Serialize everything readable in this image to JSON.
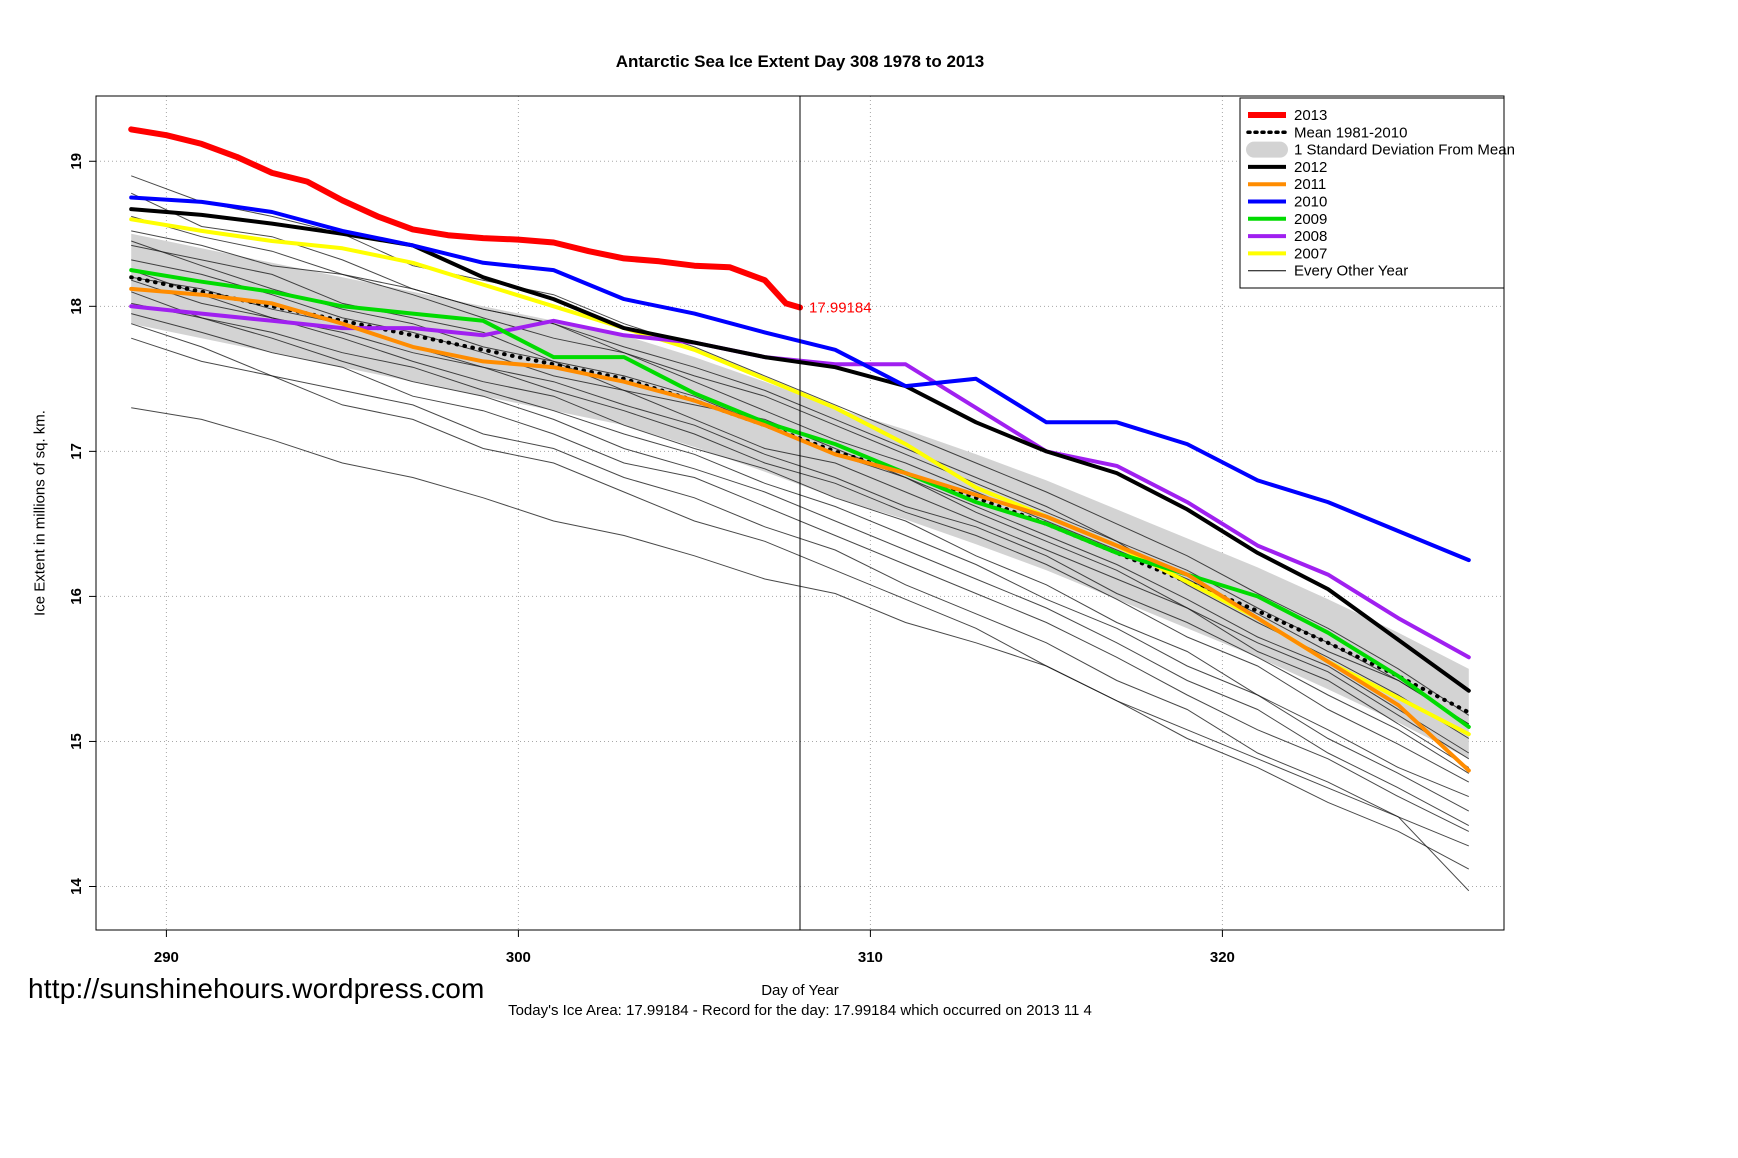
{
  "title": "Antarctic Sea Ice Extent Day 308 1978 to 2013",
  "footer": {
    "url": "http://sunshinehours.wordpress.com",
    "caption": "Today's Ice Area: 17.99184  - Record for the day: 17.99184 which occurred on 2013 11 4"
  },
  "legend": {
    "position": "top-right",
    "items": [
      {
        "label": "2013",
        "color": "#FF0000",
        "style": "thick"
      },
      {
        "label": "Mean 1981-2010",
        "color": "#000000",
        "style": "dashed"
      },
      {
        "label": "1 Standard Deviation From Mean",
        "color": "#D3D3D3",
        "style": "band"
      },
      {
        "label": "2012",
        "color": "#000000",
        "style": "medium"
      },
      {
        "label": "2011",
        "color": "#FF8C00",
        "style": "medium"
      },
      {
        "label": "2010",
        "color": "#0000FF",
        "style": "medium"
      },
      {
        "label": "2009",
        "color": "#00DB00",
        "style": "medium"
      },
      {
        "label": "2008",
        "color": "#A020F0",
        "style": "medium"
      },
      {
        "label": "2007",
        "color": "#FFFF00",
        "style": "medium"
      },
      {
        "label": "Every Other Year",
        "color": "#000000",
        "style": "thin"
      }
    ]
  },
  "chart_data": {
    "type": "line",
    "title": "Antarctic Sea Ice Extent Day 308 1978 to 2013",
    "xlabel": "Day of Year",
    "ylabel": "Ice Extent in millions of sq. km.",
    "xlim": [
      288.0,
      328.0
    ],
    "ylim": [
      13.7,
      19.45
    ],
    "xticks": [
      290,
      300,
      310,
      320
    ],
    "yticks": [
      14,
      15,
      16,
      17,
      18,
      19
    ],
    "grid": true,
    "legend_position": "top-right",
    "vline_x": 308,
    "annotation": {
      "x": 308,
      "y": 17.99184,
      "text": "17.99184",
      "color": "#FF0000"
    },
    "x_days": [
      289,
      291,
      293,
      295,
      297,
      299,
      301,
      303,
      305,
      307,
      309,
      311,
      313,
      315,
      317,
      319,
      321,
      323,
      325,
      327
    ],
    "series": [
      {
        "name": "2007",
        "color": "#FFFF00",
        "width": 4,
        "values": [
          18.6,
          18.52,
          18.45,
          18.4,
          18.3,
          18.15,
          18.0,
          17.85,
          17.7,
          17.5,
          17.3,
          17.05,
          16.75,
          16.55,
          16.35,
          16.1,
          15.85,
          15.55,
          15.3,
          15.05
        ]
      },
      {
        "name": "2008",
        "color": "#A020F0",
        "width": 4,
        "values": [
          18.0,
          17.95,
          17.9,
          17.85,
          17.85,
          17.8,
          17.9,
          17.8,
          17.75,
          17.65,
          17.6,
          17.6,
          17.3,
          17.0,
          16.9,
          16.65,
          16.35,
          16.15,
          15.85,
          15.58
        ]
      },
      {
        "name": "2009",
        "color": "#00DB00",
        "width": 4,
        "values": [
          18.25,
          18.17,
          18.1,
          18.0,
          17.95,
          17.9,
          17.65,
          17.65,
          17.4,
          17.2,
          17.05,
          16.85,
          16.65,
          16.5,
          16.3,
          16.15,
          16.0,
          15.75,
          15.45,
          15.1
        ]
      },
      {
        "name": "2011",
        "color": "#FF8C00",
        "width": 4,
        "values": [
          18.12,
          18.08,
          18.02,
          17.88,
          17.72,
          17.62,
          17.58,
          17.48,
          17.35,
          17.18,
          16.98,
          16.85,
          16.7,
          16.55,
          16.35,
          16.15,
          15.85,
          15.55,
          15.25,
          14.8
        ]
      },
      {
        "name": "2012",
        "color": "#000000",
        "width": 4,
        "values": [
          18.67,
          18.63,
          18.57,
          18.5,
          18.42,
          18.2,
          18.05,
          17.85,
          17.75,
          17.65,
          17.58,
          17.45,
          17.2,
          17.0,
          16.85,
          16.6,
          16.3,
          16.05,
          15.7,
          15.35
        ]
      },
      {
        "name": "2010",
        "color": "#0000FF",
        "width": 4,
        "values": [
          18.75,
          18.72,
          18.65,
          18.52,
          18.42,
          18.3,
          18.25,
          18.05,
          17.95,
          17.82,
          17.7,
          17.45,
          17.5,
          17.2,
          17.2,
          17.05,
          16.8,
          16.65,
          16.45,
          16.25
        ]
      },
      {
        "name": "2013",
        "color": "#FF0000",
        "width": 6,
        "x": [
          289,
          290,
          291,
          292,
          293,
          294,
          295,
          296,
          297,
          298,
          299,
          300,
          301,
          302,
          303,
          304,
          305,
          306,
          307,
          307.6,
          308
        ],
        "values": [
          19.22,
          19.18,
          19.12,
          19.03,
          18.92,
          18.86,
          18.73,
          18.62,
          18.53,
          18.49,
          18.47,
          18.46,
          18.44,
          18.38,
          18.33,
          18.31,
          18.28,
          18.27,
          18.18,
          18.02,
          17.99184
        ]
      }
    ],
    "mean": {
      "name": "Mean 1981-2010",
      "values": [
        18.2,
        18.1,
        18.0,
        17.9,
        17.8,
        17.7,
        17.6,
        17.5,
        17.35,
        17.18,
        17.0,
        16.85,
        16.68,
        16.5,
        16.3,
        16.1,
        15.9,
        15.68,
        15.45,
        15.2
      ]
    },
    "band": {
      "name": "1 Standard Deviation From Mean",
      "color": "#D3D3D3",
      "upper": [
        18.5,
        18.4,
        18.3,
        18.2,
        18.1,
        18.0,
        17.9,
        17.8,
        17.65,
        17.48,
        17.3,
        17.15,
        16.98,
        16.8,
        16.6,
        16.4,
        16.2,
        15.98,
        15.75,
        15.5
      ],
      "lower": [
        17.88,
        17.78,
        17.68,
        17.58,
        17.48,
        17.38,
        17.28,
        17.18,
        17.03,
        16.86,
        16.68,
        16.53,
        16.36,
        16.18,
        15.98,
        15.78,
        15.58,
        15.36,
        15.13,
        14.88
      ]
    },
    "other_years": [
      [
        18.9,
        18.72,
        18.62,
        18.5,
        18.28,
        18.18,
        18.08,
        17.88,
        17.72,
        17.52,
        17.32,
        17.12,
        16.92,
        16.72,
        16.5,
        16.28,
        16.02,
        15.78,
        15.5,
        15.18
      ],
      [
        18.78,
        18.55,
        18.48,
        18.32,
        18.12,
        17.98,
        17.88,
        17.72,
        17.58,
        17.42,
        17.22,
        17.02,
        16.82,
        16.62,
        16.38,
        16.08,
        15.82,
        15.58,
        15.32,
        15.02
      ],
      [
        18.52,
        18.42,
        18.28,
        18.22,
        18.08,
        17.92,
        17.78,
        17.68,
        17.48,
        17.28,
        17.08,
        16.92,
        16.72,
        16.52,
        16.32,
        16.12,
        15.88,
        15.62,
        15.42,
        15.12
      ],
      [
        18.45,
        18.28,
        18.12,
        17.98,
        17.88,
        17.72,
        17.62,
        17.42,
        17.32,
        17.22,
        17.02,
        16.82,
        16.62,
        16.42,
        16.22,
        15.98,
        15.72,
        15.52,
        15.22,
        14.92
      ],
      [
        18.32,
        18.22,
        18.08,
        17.92,
        17.82,
        17.68,
        17.52,
        17.42,
        17.22,
        17.02,
        16.92,
        16.72,
        16.52,
        16.32,
        16.12,
        15.92,
        15.62,
        15.42,
        15.12,
        14.82
      ],
      [
        18.25,
        18.08,
        17.92,
        17.82,
        17.68,
        17.58,
        17.42,
        17.28,
        17.12,
        16.92,
        16.78,
        16.58,
        16.42,
        16.22,
        15.98,
        15.72,
        15.52,
        15.22,
        14.98,
        14.72
      ],
      [
        18.18,
        18.02,
        17.92,
        17.78,
        17.62,
        17.48,
        17.38,
        17.18,
        17.02,
        16.88,
        16.68,
        16.52,
        16.28,
        16.08,
        15.82,
        15.62,
        15.32,
        15.08,
        14.82,
        14.62
      ],
      [
        18.1,
        17.92,
        17.82,
        17.68,
        17.58,
        17.42,
        17.28,
        17.12,
        16.98,
        16.78,
        16.62,
        16.42,
        16.22,
        15.98,
        15.78,
        15.52,
        15.32,
        15.02,
        14.78,
        14.52
      ],
      [
        18.02,
        17.92,
        17.78,
        17.62,
        17.48,
        17.38,
        17.22,
        17.02,
        16.88,
        16.72,
        16.52,
        16.32,
        16.12,
        15.92,
        15.68,
        15.42,
        15.22,
        14.92,
        14.68,
        14.42
      ],
      [
        17.95,
        17.82,
        17.68,
        17.58,
        17.38,
        17.28,
        17.12,
        16.92,
        16.82,
        16.62,
        16.42,
        16.22,
        16.02,
        15.82,
        15.58,
        15.32,
        15.08,
        14.88,
        14.62,
        14.38
      ],
      [
        17.88,
        17.72,
        17.52,
        17.42,
        17.32,
        17.12,
        17.02,
        16.82,
        16.68,
        16.48,
        16.32,
        16.08,
        15.88,
        15.68,
        15.42,
        15.22,
        14.92,
        14.72,
        14.48,
        14.28
      ],
      [
        17.78,
        17.62,
        17.52,
        17.32,
        17.22,
        17.02,
        16.92,
        16.72,
        16.52,
        16.38,
        16.18,
        15.98,
        15.78,
        15.52,
        15.28,
        15.02,
        14.82,
        14.58,
        14.38,
        14.12
      ],
      [
        17.3,
        17.22,
        17.08,
        16.92,
        16.82,
        16.68,
        16.52,
        16.42,
        16.28,
        16.12,
        16.02,
        15.82,
        15.68,
        15.52,
        15.28,
        15.08,
        14.88,
        14.68,
        14.48,
        13.97
      ],
      [
        18.62,
        18.48,
        18.38,
        18.22,
        18.12,
        17.98,
        17.88,
        17.68,
        17.52,
        17.38,
        17.18,
        16.98,
        16.78,
        16.58,
        16.38,
        16.18,
        15.92,
        15.68,
        15.42,
        15.12
      ],
      [
        18.42,
        18.32,
        18.22,
        18.02,
        17.92,
        17.82,
        17.62,
        17.52,
        17.38,
        17.18,
        16.98,
        16.82,
        16.58,
        16.38,
        16.18,
        15.92,
        15.68,
        15.48,
        15.18,
        14.88
      ],
      [
        18.2,
        18.12,
        17.98,
        17.88,
        17.72,
        17.58,
        17.48,
        17.32,
        17.18,
        16.98,
        16.82,
        16.62,
        16.48,
        16.28,
        16.02,
        15.82,
        15.58,
        15.32,
        15.08,
        14.78
      ]
    ]
  }
}
